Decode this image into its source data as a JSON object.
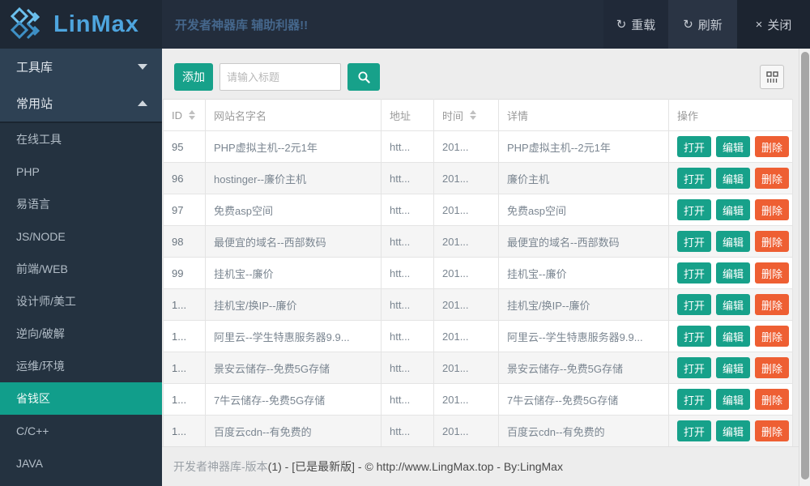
{
  "header": {
    "logo_text": "LinMax",
    "title": "开发者神器库 辅助利器!!",
    "buttons": [
      {
        "key": "reload",
        "label": "重载",
        "glyph": "↻"
      },
      {
        "key": "refresh",
        "label": "刷新",
        "glyph": "↻"
      },
      {
        "key": "close",
        "label": "关闭",
        "glyph": "×"
      }
    ]
  },
  "sidebar": {
    "groups": [
      {
        "key": "toolbox",
        "label": "工具库",
        "state": "collapsed"
      },
      {
        "key": "common-sites",
        "label": "常用站",
        "state": "expanded"
      }
    ],
    "items": [
      {
        "key": "online-tools",
        "label": "在线工具",
        "active": false
      },
      {
        "key": "php",
        "label": "PHP",
        "active": false
      },
      {
        "key": "yiyuyan",
        "label": "易语言",
        "active": false
      },
      {
        "key": "js-node",
        "label": "JS/NODE",
        "active": false
      },
      {
        "key": "frontend-web",
        "label": "前端/WEB",
        "active": false
      },
      {
        "key": "designer",
        "label": "设计师/美工",
        "active": false
      },
      {
        "key": "reverse",
        "label": "逆向/破解",
        "active": false
      },
      {
        "key": "ops-env",
        "label": "运维/环境",
        "active": false
      },
      {
        "key": "money-saving",
        "label": "省钱区",
        "active": true
      },
      {
        "key": "c-cpp",
        "label": "C/C++",
        "active": false
      },
      {
        "key": "java",
        "label": "JAVA",
        "active": false
      }
    ]
  },
  "toolbar": {
    "add_label": "添加",
    "search_placeholder": "请输入标题",
    "search_value": ""
  },
  "table": {
    "columns": [
      {
        "label": "ID",
        "sortable": true
      },
      {
        "label": "网站名字名",
        "sortable": false
      },
      {
        "label": "地址",
        "sortable": false
      },
      {
        "label": "时间",
        "sortable": true
      },
      {
        "label": "详情",
        "sortable": false
      },
      {
        "label": "操作",
        "sortable": false
      }
    ],
    "actions": [
      {
        "key": "open",
        "label": "打开"
      },
      {
        "key": "edit",
        "label": "编辑"
      },
      {
        "key": "delete",
        "label": "删除"
      }
    ],
    "rows": [
      {
        "id": "95",
        "name": "PHP虚拟主机--2元1年",
        "addr": "htt...",
        "time": "201...",
        "detail": "PHP虚拟主机--2元1年"
      },
      {
        "id": "96",
        "name": "hostinger--廉价主机",
        "addr": "htt...",
        "time": "201...",
        "detail": "廉价主机"
      },
      {
        "id": "97",
        "name": "免费asp空间",
        "addr": "htt...",
        "time": "201...",
        "detail": "免费asp空间"
      },
      {
        "id": "98",
        "name": "最便宜的域名--西部数码",
        "addr": "htt...",
        "time": "201...",
        "detail": "最便宜的域名--西部数码"
      },
      {
        "id": "99",
        "name": "挂机宝--廉价",
        "addr": "htt...",
        "time": "201...",
        "detail": "挂机宝--廉价"
      },
      {
        "id": "1...",
        "name": "挂机宝/换IP--廉价",
        "addr": "htt...",
        "time": "201...",
        "detail": "挂机宝/换IP--廉价"
      },
      {
        "id": "1...",
        "name": "阿里云--学生特惠服务器9.9...",
        "addr": "htt...",
        "time": "201...",
        "detail": "阿里云--学生特惠服务器9.9..."
      },
      {
        "id": "1...",
        "name": "景安云储存--免费5G存储",
        "addr": "htt...",
        "time": "201...",
        "detail": "景安云储存--免费5G存储"
      },
      {
        "id": "1...",
        "name": "7牛云储存--免费5G存储",
        "addr": "htt...",
        "time": "201...",
        "detail": "7牛云储存--免费5G存储"
      },
      {
        "id": "1...",
        "name": "百度云cdn--有免费的",
        "addr": "htt...",
        "time": "201...",
        "detail": "百度云cdn--有免费的"
      }
    ]
  },
  "footer": {
    "text_light": "开发者神器库-版本",
    "text_dark": "(1) - [已是最新版] - © http://www.LingMax.top - By:LingMax"
  },
  "colors": {
    "header_bg": "#232d3c",
    "sidebar_bg": "#243240",
    "sidebar_group_bg": "#2e4154",
    "accent_teal": "#17a18a",
    "active_item_teal": "#119e8b",
    "danger_orange": "#ee5f33",
    "logo_blue": "#4ea5de"
  }
}
